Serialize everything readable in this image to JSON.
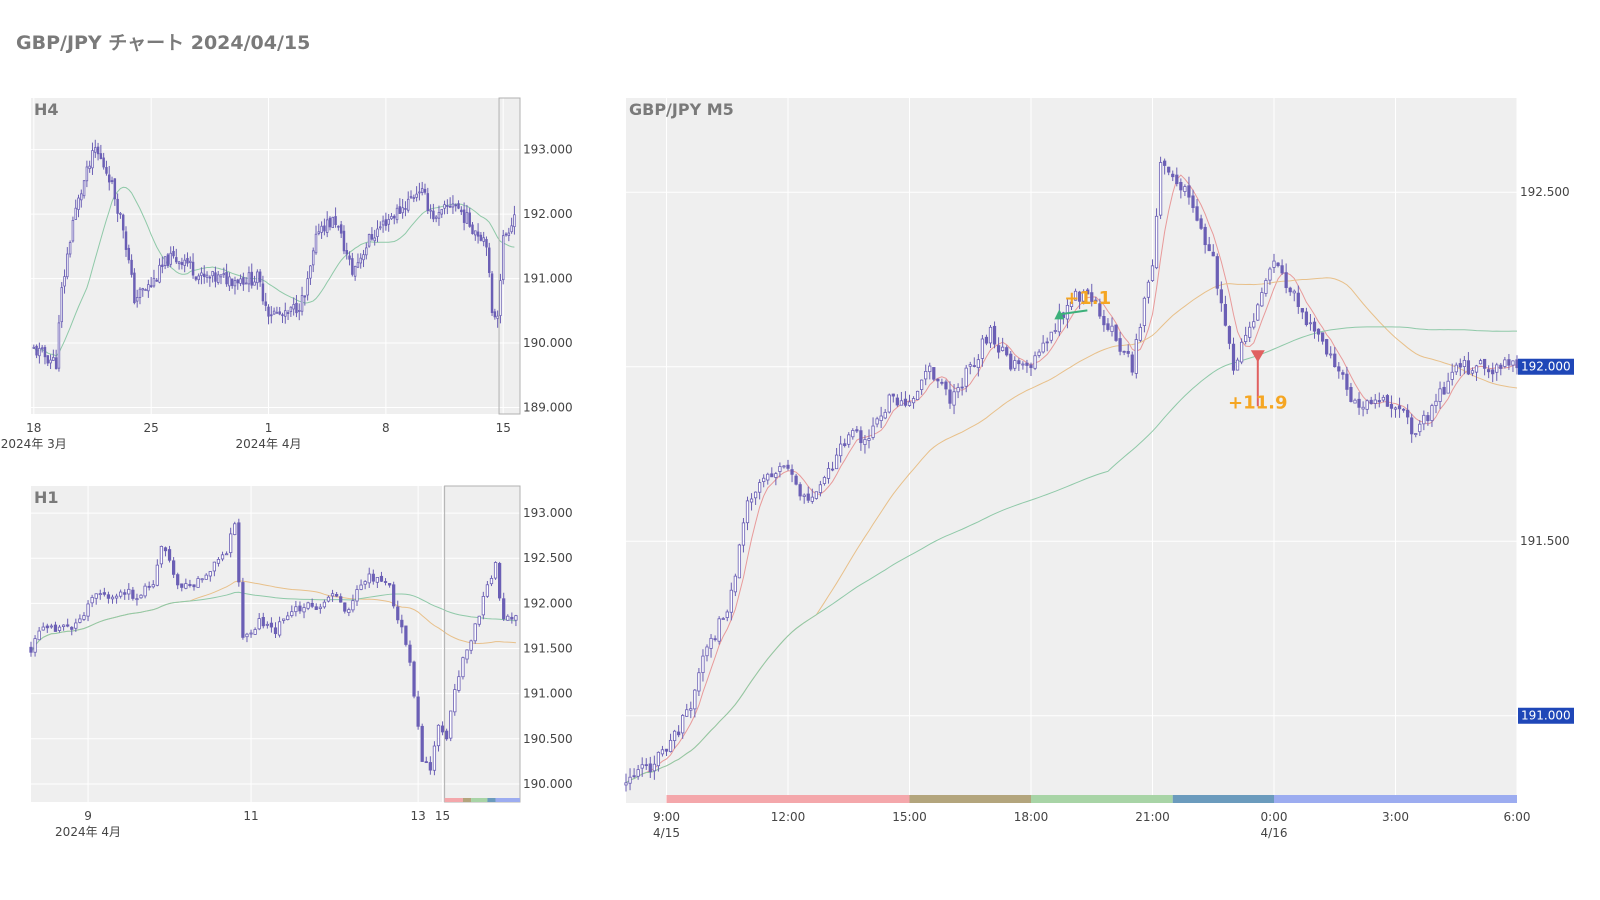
{
  "page": {
    "title": "GBP/JPY チャート 2024/04/15"
  },
  "colors": {
    "plot_bg": "#efefef",
    "grid": "#ffffff",
    "candle": "#6b5fb5",
    "ma_fast": "#e89a9a",
    "ma_mid": "#8fc9a8",
    "ma_slow": "#e8c08a",
    "range_box": "#b0b0b0",
    "price_tag": "#1f47b8",
    "trade_label": "#f5a623",
    "buy_marker": "#3cb07a",
    "sell_marker": "#e06060",
    "session_bar": [
      "#f4a7ab",
      "#b3a57d",
      "#a8d4a6",
      "#6b9bbd",
      "#9cacf0"
    ]
  },
  "chart_data": [
    {
      "id": "h4",
      "type": "candlestick",
      "label": "H4",
      "ylim": [
        188.9,
        193.8
      ],
      "yticks": [
        189,
        190,
        191,
        192,
        193
      ],
      "ytick_labels": [
        "189.000",
        "190.000",
        "191.000",
        "192.000",
        "193.000"
      ],
      "xrange": [
        -1,
        174
      ],
      "xticks": [
        {
          "x": 0,
          "label": "18",
          "sub": "2024年 3月"
        },
        {
          "x": 42,
          "label": "25",
          "sub": ""
        },
        {
          "x": 84,
          "label": "1",
          "sub": "2024年 4月"
        },
        {
          "x": 126,
          "label": "8",
          "sub": ""
        },
        {
          "x": 168,
          "label": "15",
          "sub": ""
        }
      ],
      "anchors": [
        [
          0,
          189.9
        ],
        [
          8,
          189.7
        ],
        [
          10,
          190.8
        ],
        [
          14,
          191.9
        ],
        [
          18,
          192.5
        ],
        [
          22,
          193.0
        ],
        [
          27,
          192.6
        ],
        [
          32,
          191.8
        ],
        [
          36,
          190.7
        ],
        [
          42,
          190.9
        ],
        [
          48,
          191.3
        ],
        [
          54,
          191.3
        ],
        [
          60,
          191.0
        ],
        [
          66,
          191.0
        ],
        [
          74,
          191.0
        ],
        [
          80,
          191.0
        ],
        [
          84,
          190.5
        ],
        [
          90,
          190.4
        ],
        [
          97,
          190.7
        ],
        [
          102,
          191.8
        ],
        [
          108,
          191.9
        ],
        [
          114,
          191.1
        ],
        [
          120,
          191.6
        ],
        [
          126,
          191.9
        ],
        [
          132,
          192.1
        ],
        [
          138,
          192.4
        ],
        [
          144,
          191.9
        ],
        [
          150,
          192.2
        ],
        [
          157,
          191.8
        ],
        [
          162,
          191.6
        ],
        [
          164,
          190.4
        ],
        [
          166,
          190.5
        ],
        [
          168,
          191.6
        ],
        [
          172,
          192.0
        ]
      ],
      "vol": 0.16,
      "seed": 11,
      "ma": [
        {
          "key": "ma_mid",
          "period": 20
        }
      ],
      "range_box": [
        166.5,
        174
      ]
    },
    {
      "id": "h1",
      "type": "candlestick",
      "label": "H1",
      "ylim": [
        189.8,
        193.3
      ],
      "yticks": [
        190,
        190.5,
        191,
        191.5,
        192,
        192.5,
        193
      ],
      "ytick_labels": [
        "190.000",
        "190.500",
        "191.000",
        "191.500",
        "192.000",
        "192.500",
        "193.000"
      ],
      "xrange": [
        0,
        120
      ],
      "xticks": [
        {
          "x": 14,
          "label": "9",
          "sub": "2024年 4月"
        },
        {
          "x": 54,
          "label": "11",
          "sub": ""
        },
        {
          "x": 95,
          "label": "13",
          "sub": ""
        },
        {
          "x": 101,
          "label": "15",
          "sub": ""
        }
      ],
      "anchors": [
        [
          0,
          191.5
        ],
        [
          2,
          191.7
        ],
        [
          6,
          191.7
        ],
        [
          12,
          191.8
        ],
        [
          16,
          192.1
        ],
        [
          20,
          192.1
        ],
        [
          26,
          192.1
        ],
        [
          30,
          192.2
        ],
        [
          32,
          192.6
        ],
        [
          34,
          192.5
        ],
        [
          36,
          192.2
        ],
        [
          40,
          192.2
        ],
        [
          44,
          192.4
        ],
        [
          48,
          192.6
        ],
        [
          50,
          192.9
        ],
        [
          52,
          191.6
        ],
        [
          56,
          191.8
        ],
        [
          60,
          191.7
        ],
        [
          64,
          191.9
        ],
        [
          68,
          192.0
        ],
        [
          70,
          191.9
        ],
        [
          74,
          192.1
        ],
        [
          78,
          191.9
        ],
        [
          80,
          192.2
        ],
        [
          84,
          192.3
        ],
        [
          88,
          192.2
        ],
        [
          90,
          191.8
        ],
        [
          92,
          191.6
        ],
        [
          94,
          191.0
        ],
        [
          96,
          190.3
        ],
        [
          98,
          190.2
        ],
        [
          100,
          190.6
        ],
        [
          102,
          190.5
        ],
        [
          104,
          191.1
        ],
        [
          108,
          191.6
        ],
        [
          112,
          192.2
        ],
        [
          114,
          192.4
        ],
        [
          116,
          191.8
        ],
        [
          119,
          191.9
        ]
      ],
      "vol": 0.08,
      "seed": 23,
      "ma": [
        {
          "key": "ma_slow",
          "period": 40
        },
        {
          "key": "ma_mid",
          "period": 80
        }
      ],
      "range_box": [
        101.5,
        120
      ],
      "session_bar": [
        [
          101.5,
          106
        ],
        [
          106,
          108
        ],
        [
          108,
          112
        ],
        [
          112,
          114
        ],
        [
          114,
          120
        ]
      ]
    },
    {
      "id": "m5",
      "type": "candlestick",
      "label": "GBP/JPY M5",
      "ylim": [
        190.75,
        192.77
      ],
      "yticks": [
        191,
        191.5,
        192,
        192.5
      ],
      "ytick_labels": [
        "191.000",
        "191.500",
        "192.000",
        "192.500"
      ],
      "tag_values": [
        {
          "v": 191,
          "label": "191.000"
        },
        {
          "v": 192,
          "label": "192.000"
        }
      ],
      "xrange": [
        -10,
        210
      ],
      "xticks": [
        {
          "x": 0,
          "label": "9:00",
          "sub": "4/15"
        },
        {
          "x": 30,
          "label": "12:00",
          "sub": ""
        },
        {
          "x": 60,
          "label": "15:00",
          "sub": ""
        },
        {
          "x": 90,
          "label": "18:00",
          "sub": ""
        },
        {
          "x": 120,
          "label": "21:00",
          "sub": ""
        },
        {
          "x": 150,
          "label": "0:00",
          "sub": "4/16"
        },
        {
          "x": 180,
          "label": "3:00",
          "sub": ""
        },
        {
          "x": 210,
          "label": "6:00",
          "sub": ""
        }
      ],
      "anchors": [
        [
          -10,
          190.8
        ],
        [
          0,
          190.9
        ],
        [
          5,
          191.0
        ],
        [
          10,
          191.2
        ],
        [
          15,
          191.3
        ],
        [
          20,
          191.6
        ],
        [
          25,
          191.7
        ],
        [
          30,
          191.7
        ],
        [
          35,
          191.6
        ],
        [
          40,
          191.7
        ],
        [
          45,
          191.8
        ],
        [
          50,
          191.8
        ],
        [
          55,
          191.9
        ],
        [
          60,
          191.9
        ],
        [
          65,
          192.0
        ],
        [
          70,
          191.9
        ],
        [
          75,
          192.0
        ],
        [
          80,
          192.1
        ],
        [
          85,
          192.0
        ],
        [
          90,
          192.0
        ],
        [
          95,
          192.1
        ],
        [
          100,
          192.2
        ],
        [
          105,
          192.2
        ],
        [
          110,
          192.1
        ],
        [
          115,
          192.0
        ],
        [
          120,
          192.3
        ],
        [
          122,
          192.6
        ],
        [
          128,
          192.5
        ],
        [
          132,
          192.4
        ],
        [
          135,
          192.3
        ],
        [
          138,
          192.1
        ],
        [
          140,
          192.0
        ],
        [
          143,
          192.1
        ],
        [
          147,
          192.2
        ],
        [
          150,
          192.3
        ],
        [
          155,
          192.2
        ],
        [
          160,
          192.1
        ],
        [
          165,
          192.0
        ],
        [
          170,
          191.9
        ],
        [
          175,
          191.9
        ],
        [
          180,
          191.9
        ],
        [
          185,
          191.8
        ],
        [
          190,
          191.9
        ],
        [
          195,
          192.0
        ],
        [
          200,
          192.0
        ],
        [
          210,
          192.0
        ]
      ],
      "vol": 0.03,
      "seed": 37,
      "ma": [
        {
          "key": "ma_fast",
          "period": 6
        },
        {
          "key": "ma_slow",
          "period": 48
        },
        {
          "key": "ma_mid",
          "period": 120
        }
      ],
      "session_bar": [
        [
          0,
          60
        ],
        [
          60,
          90
        ],
        [
          90,
          125
        ],
        [
          125,
          150
        ],
        [
          150,
          210
        ]
      ],
      "trades": [
        {
          "x": 97,
          "y": 192.15,
          "side": "buy",
          "label": "+1.1",
          "label_x": 104,
          "label_y": 192.18
        },
        {
          "x": 146,
          "y": 192.03,
          "side": "sell",
          "label": "+11.9",
          "label_x": 146,
          "label_y": 191.88
        }
      ]
    }
  ]
}
